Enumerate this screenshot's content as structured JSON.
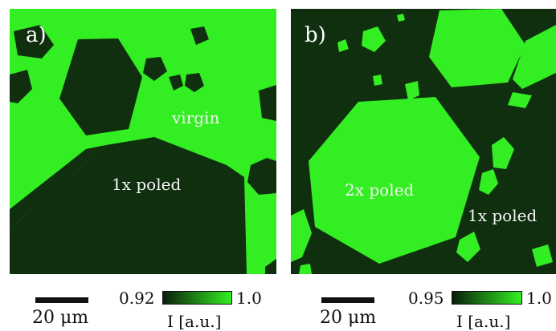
{
  "panels": [
    {
      "letter": "a)",
      "labels": {
        "virgin": "virgin",
        "poled": "1x poled"
      },
      "scale_bar": "20 μm",
      "colorbar": {
        "min": "0.92",
        "max": "1.0",
        "label": "I [a.u.]"
      }
    },
    {
      "letter": "b)",
      "labels": {
        "poled2": "2x poled",
        "poled1": "1x poled"
      },
      "scale_bar": "20 μm",
      "colorbar": {
        "min": "0.95",
        "max": "1.0",
        "label": "I [a.u.]"
      }
    }
  ],
  "colors": {
    "bright_green": "#33ee22",
    "dark_green": "#0f2f0f",
    "background": "#ffffff",
    "text_dark": "#111111",
    "text_light": "#f6f6f6"
  }
}
